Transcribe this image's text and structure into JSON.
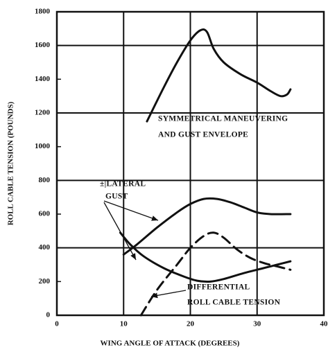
{
  "chart_data": {
    "type": "line",
    "xlabel": "WING ANGLE OF ATTACK (DEGREES)",
    "ylabel": "ROLL CABLE TENSION (POUNDS)",
    "xlim": [
      0,
      40
    ],
    "xticks": [
      0,
      10,
      20,
      30,
      40
    ],
    "ylim": [
      0,
      1800
    ],
    "yticks": [
      0,
      200,
      400,
      600,
      800,
      1000,
      1200,
      1400,
      1600,
      1800
    ],
    "xgrid": [
      10,
      20,
      30
    ],
    "ygrid": [
      400,
      800,
      1200,
      1600
    ],
    "annotations": [
      "SYMMETRICAL MANEUVERING",
      "AND GUST ENVELOPE",
      "±|LATERAL",
      "GUST",
      "DIFFERENTIAL",
      "ROLL CABLE TENSION"
    ],
    "series": [
      {
        "color": "#111",
        "dashed": false,
        "x": [
          13.5,
          16,
          18,
          20,
          21.5,
          22.5,
          23.5,
          25,
          27.5,
          30,
          32,
          33.5,
          34.5,
          35
        ],
        "values": [
          1150,
          1350,
          1500,
          1630,
          1690,
          1680,
          1580,
          1500,
          1430,
          1380,
          1330,
          1300,
          1310,
          1340
        ]
      },
      {
        "color": "#111",
        "dashed": false,
        "x": [
          10,
          12,
          15,
          18,
          20,
          22,
          24,
          26,
          28,
          30,
          32,
          35
        ],
        "values": [
          360,
          420,
          520,
          610,
          660,
          690,
          690,
          670,
          640,
          610,
          600,
          600
        ]
      },
      {
        "color": "#111",
        "dashed": false,
        "x": [
          9.5,
          11,
          13,
          16,
          19,
          21,
          23,
          25,
          28,
          31,
          33,
          35
        ],
        "values": [
          490,
          420,
          350,
          280,
          230,
          205,
          200,
          215,
          250,
          280,
          300,
          320
        ]
      },
      {
        "color": "#111",
        "dashed": true,
        "x": [
          12.6,
          15,
          18,
          20,
          22,
          23.5,
          25,
          27,
          29,
          31,
          33,
          35
        ],
        "values": [
          0,
          150,
          300,
          400,
          470,
          490,
          460,
          390,
          340,
          310,
          290,
          270
        ]
      }
    ]
  }
}
